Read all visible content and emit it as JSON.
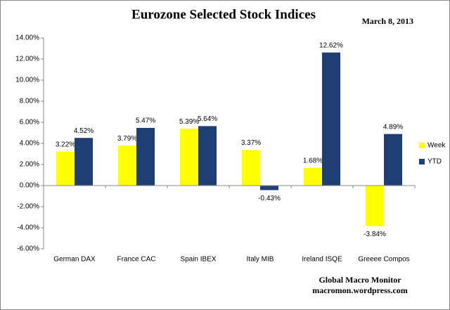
{
  "chart_data": {
    "type": "bar",
    "title": "Eurozone Selected Stock Indices",
    "subtitle": "March 8, 2013",
    "annotations": [
      "Global Macro Monitor",
      "macromon.wordpress.com"
    ],
    "categories": [
      "German DAX",
      "France CAC",
      "Spain IBEX",
      "Italy MIB",
      "Ireland ISQE",
      "Greeee Compos"
    ],
    "series": [
      {
        "name": "Week",
        "color": "#ffff00",
        "values": [
          3.22,
          3.79,
          5.39,
          3.37,
          1.68,
          -3.84
        ],
        "value_labels": [
          "3.22%",
          "3.79%",
          "5.39%",
          "3.37%",
          "1.68%",
          "-3.84%"
        ]
      },
      {
        "name": "YTD",
        "color": "#1f3f74",
        "values": [
          4.52,
          5.47,
          5.64,
          -0.43,
          12.62,
          4.89
        ],
        "value_labels": [
          "4.52%",
          "5.47%",
          "5.64%",
          "-0.43%",
          "12.62%",
          "4.89%"
        ]
      }
    ],
    "ylim": [
      -6,
      14
    ],
    "yticks": [
      {
        "value": -6,
        "label": "-6.00%"
      },
      {
        "value": -4,
        "label": "-4.00%"
      },
      {
        "value": -2,
        "label": "-2.00%"
      },
      {
        "value": 0,
        "label": "0.00%"
      },
      {
        "value": 2,
        "label": "2.00%"
      },
      {
        "value": 4,
        "label": "4.00%"
      },
      {
        "value": 6,
        "label": "6.00%"
      },
      {
        "value": 8,
        "label": "8.00%"
      },
      {
        "value": 10,
        "label": "10.00%"
      },
      {
        "value": 12,
        "label": "12.00%"
      },
      {
        "value": 14,
        "label": "14.00%"
      }
    ],
    "grid": false,
    "legend": "right"
  }
}
